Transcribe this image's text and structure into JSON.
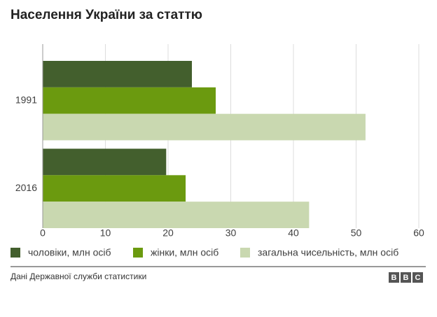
{
  "chart_data": {
    "type": "bar",
    "horizontal": true,
    "title": "Населення України за статтю",
    "categories": [
      "1991",
      "2016"
    ],
    "series": [
      {
        "name": "чоловіки, млн осіб",
        "color": "#435f2d",
        "values": [
          23.8,
          19.7
        ]
      },
      {
        "name": "жінки, млн осіб",
        "color": "#6b9a0f",
        "values": [
          27.6,
          22.8
        ]
      },
      {
        "name": "загальна чисельність, млн осіб",
        "color": "#c9d8b0",
        "values": [
          51.5,
          42.5
        ]
      }
    ],
    "xlim": [
      0,
      60
    ],
    "xticks": [
      0,
      10,
      20,
      30,
      40,
      50,
      60
    ],
    "grid": true,
    "source": "Дані Державної служби статистики",
    "logo": [
      "B",
      "B",
      "C"
    ]
  }
}
